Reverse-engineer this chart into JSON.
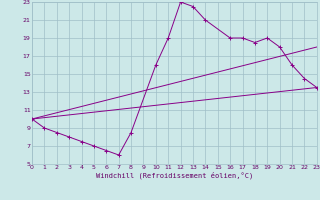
{
  "xlabel": "Windchill (Refroidissement éolien,°C)",
  "bg_color": "#cce8e8",
  "grid_color": "#a0bfc8",
  "line_color": "#880088",
  "xlim": [
    0,
    23
  ],
  "ylim": [
    5,
    23
  ],
  "xticks": [
    0,
    1,
    2,
    3,
    4,
    5,
    6,
    7,
    8,
    9,
    10,
    11,
    12,
    13,
    14,
    15,
    16,
    17,
    18,
    19,
    20,
    21,
    22,
    23
  ],
  "yticks": [
    5,
    7,
    9,
    11,
    13,
    15,
    17,
    19,
    21,
    23
  ],
  "line1_x": [
    0,
    1,
    2,
    3,
    4,
    5,
    6,
    7,
    8,
    10,
    11,
    12,
    13,
    14,
    16,
    17,
    18,
    19,
    20,
    21,
    22,
    23
  ],
  "line1_y": [
    10,
    9,
    8.5,
    8,
    7.5,
    7,
    6.5,
    6,
    8.5,
    16,
    19,
    23,
    22.5,
    21,
    19,
    19,
    18.5,
    19,
    18,
    16,
    14.5,
    13.5
  ],
  "line2_x": [
    0,
    23
  ],
  "line2_y": [
    10,
    18
  ],
  "line3_x": [
    0,
    23
  ],
  "line3_y": [
    10,
    13.5
  ]
}
